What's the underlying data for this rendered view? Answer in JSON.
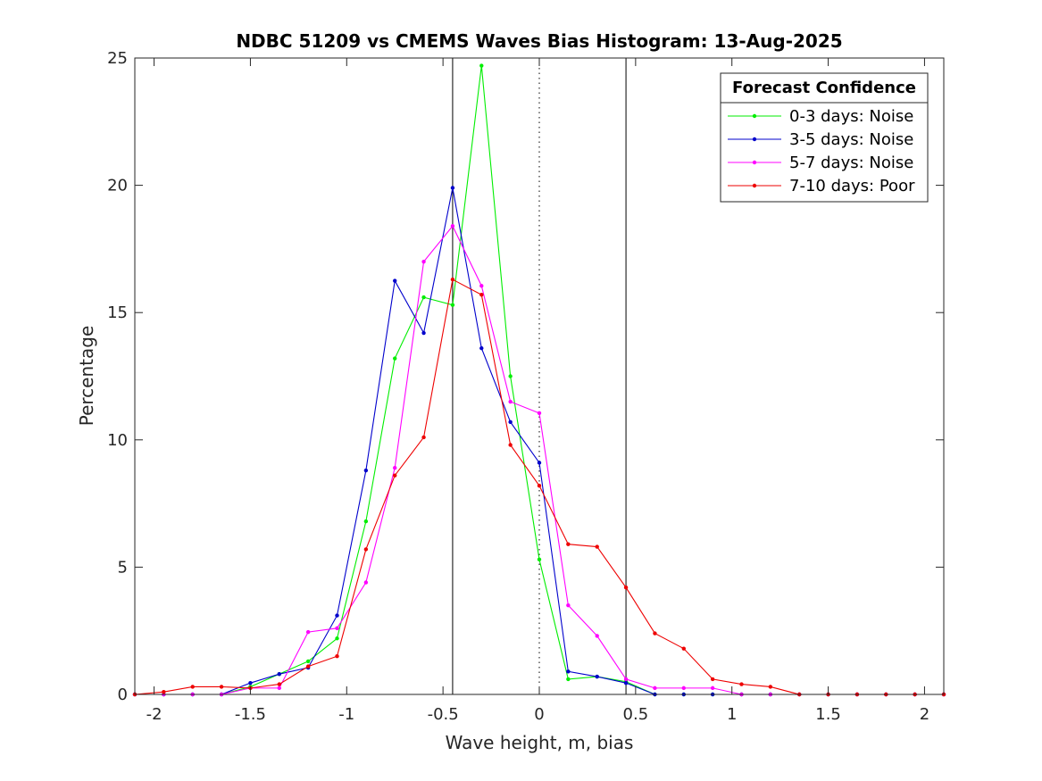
{
  "chart_data": {
    "type": "line",
    "title": "NDBC 51209 vs CMEMS Waves Bias Histogram: 13-Aug-2025",
    "xlabel": "Wave height, m, bias",
    "ylabel": "Percentage",
    "xlim": [
      -2.1,
      2.1
    ],
    "ylim": [
      0,
      25
    ],
    "xticks": [
      -2,
      -1.5,
      -1,
      -0.5,
      0,
      0.5,
      1,
      1.5,
      2
    ],
    "xtick_labels": [
      "-2",
      "-1.5",
      "-1",
      "-0.5",
      "0",
      "0.5",
      "1",
      "1.5",
      "2"
    ],
    "yticks": [
      0,
      5,
      10,
      15,
      20,
      25
    ],
    "ytick_labels": [
      "0",
      "5",
      "10",
      "15",
      "20",
      "25"
    ],
    "grid": false,
    "vertical_lines": [
      {
        "x": -0.45,
        "style": "solid"
      },
      {
        "x": 0,
        "style": "dotted"
      },
      {
        "x": 0.45,
        "style": "solid"
      }
    ],
    "x": [
      -2.1,
      -1.95,
      -1.8,
      -1.65,
      -1.5,
      -1.35,
      -1.2,
      -1.05,
      -0.9,
      -0.75,
      -0.6,
      -0.45,
      -0.3,
      -0.15,
      0,
      0.15,
      0.3,
      0.45,
      0.6,
      0.75,
      0.9,
      1.05,
      1.2,
      1.35,
      1.5,
      1.65,
      1.8,
      1.95,
      2.1
    ],
    "series": [
      {
        "name": "0-3 days: Noise",
        "color": "#00ee00",
        "values": [
          0,
          0,
          0,
          0,
          0.3,
          0.8,
          1.3,
          2.2,
          6.8,
          13.2,
          15.6,
          15.3,
          24.7,
          12.5,
          5.3,
          0.6,
          0.7,
          0.5,
          0,
          0,
          0,
          0,
          0,
          0,
          0,
          0,
          0,
          0,
          0
        ]
      },
      {
        "name": "3-5 days: Noise",
        "color": "#0000cc",
        "values": [
          0,
          0,
          0,
          0,
          0.45,
          0.8,
          1.05,
          3.1,
          8.8,
          16.25,
          14.2,
          19.9,
          13.6,
          10.7,
          9.1,
          0.9,
          0.7,
          0.45,
          0,
          0,
          0,
          0,
          0,
          0,
          0,
          0,
          0,
          0,
          0
        ]
      },
      {
        "name": "5-7 days: Noise",
        "color": "#ff00ff",
        "values": [
          0,
          0,
          0,
          0,
          0.25,
          0.25,
          2.45,
          2.6,
          4.4,
          8.9,
          17.0,
          18.4,
          16.05,
          11.5,
          11.05,
          3.5,
          2.3,
          0.6,
          0.25,
          0.25,
          0.25,
          0,
          0,
          0,
          0,
          0,
          0,
          0,
          0
        ]
      },
      {
        "name": "7-10 days: Poor",
        "color": "#ee0000",
        "values": [
          0,
          0.1,
          0.3,
          0.3,
          0.25,
          0.4,
          1.1,
          1.5,
          5.7,
          8.6,
          10.1,
          16.3,
          15.7,
          9.8,
          8.2,
          5.9,
          5.8,
          4.2,
          2.4,
          1.8,
          0.6,
          0.4,
          0.3,
          0,
          0,
          0,
          0,
          0,
          0
        ]
      }
    ],
    "legend": {
      "title": "Forecast Confidence",
      "placement": "top-right"
    }
  }
}
